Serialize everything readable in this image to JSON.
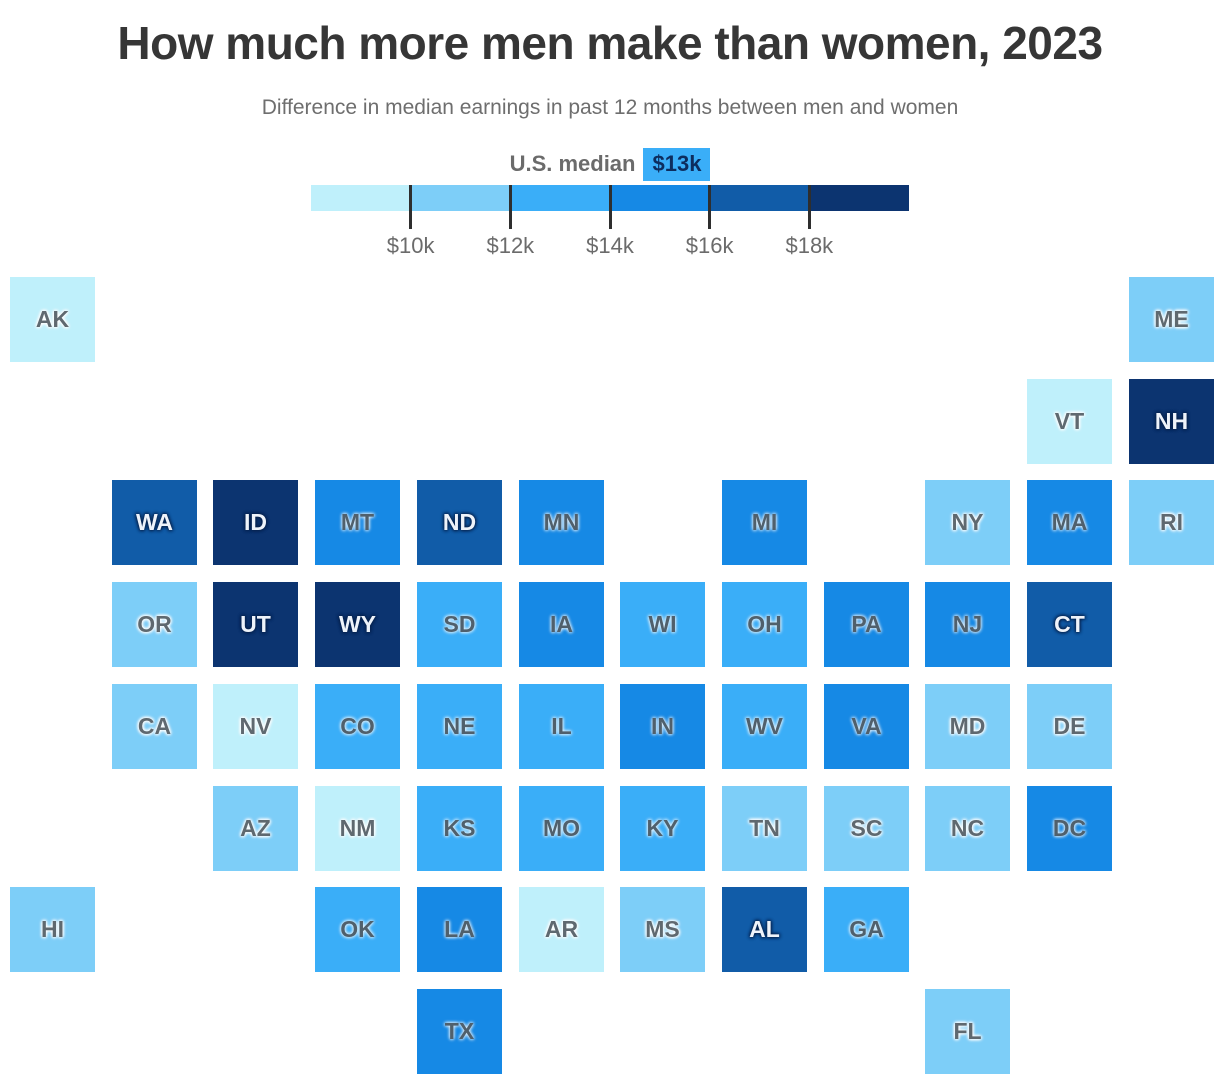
{
  "header": {
    "title": "How much more men make than women, 2023",
    "subtitle": "Difference in median earnings in past 12 months between men and women"
  },
  "legend": {
    "median_label": "U.S. median",
    "median_value": "$13k",
    "median_badge_bg": "#3aaef8",
    "median_badge_text": "#0d2d5e",
    "colors": [
      "#bff0fb",
      "#7dcef8",
      "#3aaef8",
      "#1689e5",
      "#115ca8",
      "#0c3470"
    ],
    "ticks": [
      "$10k",
      "$12k",
      "$14k",
      "$16k",
      "$18k"
    ],
    "bin_labels": [
      "under $10k",
      "$10k-$12k",
      "$12k-$14k",
      "$14k-$16k",
      "$16k-$18k",
      "over $18k"
    ]
  },
  "chart_data": {
    "type": "heatmap",
    "subtype": "us-tile-cartogram",
    "title": "How much more men make than women, 2023",
    "value_meaning": "Difference in median earnings in past 12 months between men and women",
    "us_median": "$13k",
    "bins": [
      "under $10k",
      "$10k-$12k",
      "$12k-$14k",
      "$14k-$16k",
      "$16k-$18k",
      "over $18k"
    ],
    "bin_colors": [
      "#bff0fb",
      "#7dcef8",
      "#3aaef8",
      "#1689e5",
      "#115ca8",
      "#0c3470"
    ],
    "legend_position": "top-center",
    "states": [
      {
        "abbr": "AK",
        "bin": 0,
        "col": 0,
        "row": 0
      },
      {
        "abbr": "ME",
        "bin": 1,
        "col": 11,
        "row": 0
      },
      {
        "abbr": "VT",
        "bin": 0,
        "col": 10,
        "row": 1
      },
      {
        "abbr": "NH",
        "bin": 5,
        "col": 11,
        "row": 1
      },
      {
        "abbr": "WA",
        "bin": 4,
        "col": 1,
        "row": 2
      },
      {
        "abbr": "ID",
        "bin": 5,
        "col": 2,
        "row": 2
      },
      {
        "abbr": "MT",
        "bin": 3,
        "col": 3,
        "row": 2
      },
      {
        "abbr": "ND",
        "bin": 4,
        "col": 4,
        "row": 2
      },
      {
        "abbr": "MN",
        "bin": 3,
        "col": 5,
        "row": 2
      },
      {
        "abbr": "MI",
        "bin": 3,
        "col": 7,
        "row": 2
      },
      {
        "abbr": "NY",
        "bin": 1,
        "col": 9,
        "row": 2
      },
      {
        "abbr": "MA",
        "bin": 3,
        "col": 10,
        "row": 2
      },
      {
        "abbr": "RI",
        "bin": 1,
        "col": 11,
        "row": 2
      },
      {
        "abbr": "OR",
        "bin": 1,
        "col": 1,
        "row": 3
      },
      {
        "abbr": "UT",
        "bin": 5,
        "col": 2,
        "row": 3
      },
      {
        "abbr": "WY",
        "bin": 5,
        "col": 3,
        "row": 3
      },
      {
        "abbr": "SD",
        "bin": 2,
        "col": 4,
        "row": 3
      },
      {
        "abbr": "IA",
        "bin": 3,
        "col": 5,
        "row": 3
      },
      {
        "abbr": "WI",
        "bin": 2,
        "col": 6,
        "row": 3
      },
      {
        "abbr": "OH",
        "bin": 2,
        "col": 7,
        "row": 3
      },
      {
        "abbr": "PA",
        "bin": 3,
        "col": 8,
        "row": 3
      },
      {
        "abbr": "NJ",
        "bin": 3,
        "col": 9,
        "row": 3
      },
      {
        "abbr": "CT",
        "bin": 4,
        "col": 10,
        "row": 3
      },
      {
        "abbr": "CA",
        "bin": 1,
        "col": 1,
        "row": 4
      },
      {
        "abbr": "NV",
        "bin": 0,
        "col": 2,
        "row": 4
      },
      {
        "abbr": "CO",
        "bin": 2,
        "col": 3,
        "row": 4
      },
      {
        "abbr": "NE",
        "bin": 2,
        "col": 4,
        "row": 4
      },
      {
        "abbr": "IL",
        "bin": 2,
        "col": 5,
        "row": 4
      },
      {
        "abbr": "IN",
        "bin": 3,
        "col": 6,
        "row": 4
      },
      {
        "abbr": "WV",
        "bin": 2,
        "col": 7,
        "row": 4
      },
      {
        "abbr": "VA",
        "bin": 3,
        "col": 8,
        "row": 4
      },
      {
        "abbr": "MD",
        "bin": 1,
        "col": 9,
        "row": 4
      },
      {
        "abbr": "DE",
        "bin": 1,
        "col": 10,
        "row": 4
      },
      {
        "abbr": "AZ",
        "bin": 1,
        "col": 2,
        "row": 5
      },
      {
        "abbr": "NM",
        "bin": 0,
        "col": 3,
        "row": 5
      },
      {
        "abbr": "KS",
        "bin": 2,
        "col": 4,
        "row": 5
      },
      {
        "abbr": "MO",
        "bin": 2,
        "col": 5,
        "row": 5
      },
      {
        "abbr": "KY",
        "bin": 2,
        "col": 6,
        "row": 5
      },
      {
        "abbr": "TN",
        "bin": 1,
        "col": 7,
        "row": 5
      },
      {
        "abbr": "SC",
        "bin": 1,
        "col": 8,
        "row": 5
      },
      {
        "abbr": "NC",
        "bin": 1,
        "col": 9,
        "row": 5
      },
      {
        "abbr": "DC",
        "bin": 3,
        "col": 10,
        "row": 5
      },
      {
        "abbr": "HI",
        "bin": 1,
        "col": 0,
        "row": 6
      },
      {
        "abbr": "OK",
        "bin": 2,
        "col": 3,
        "row": 6
      },
      {
        "abbr": "LA",
        "bin": 3,
        "col": 4,
        "row": 6
      },
      {
        "abbr": "AR",
        "bin": 0,
        "col": 5,
        "row": 6
      },
      {
        "abbr": "MS",
        "bin": 1,
        "col": 6,
        "row": 6
      },
      {
        "abbr": "AL",
        "bin": 4,
        "col": 7,
        "row": 6
      },
      {
        "abbr": "GA",
        "bin": 2,
        "col": 8,
        "row": 6
      },
      {
        "abbr": "TX",
        "bin": 3,
        "col": 4,
        "row": 7
      },
      {
        "abbr": "FL",
        "bin": 1,
        "col": 9,
        "row": 7
      }
    ]
  }
}
